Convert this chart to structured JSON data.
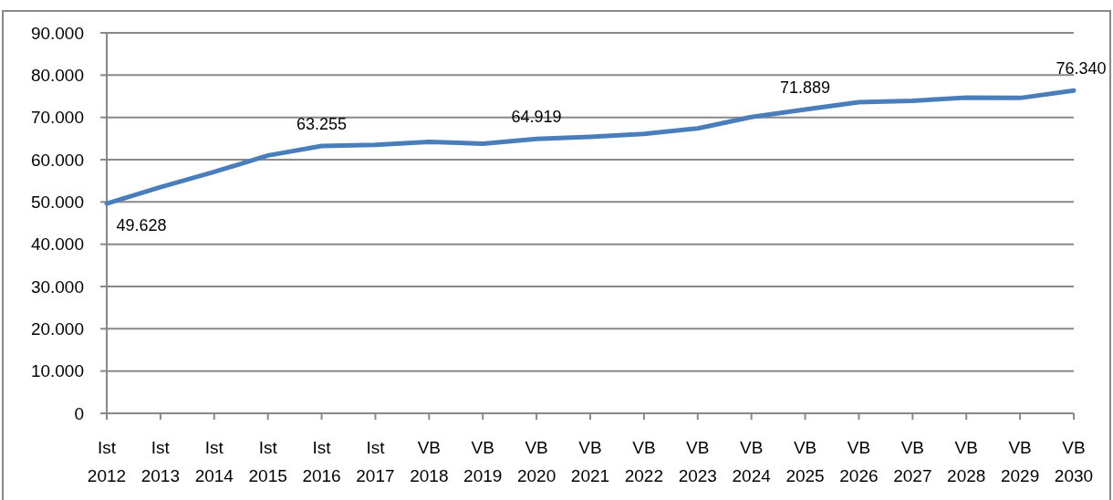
{
  "chart_data": {
    "type": "line",
    "categories": [
      "Ist 2012",
      "Ist 2013",
      "Ist 2014",
      "Ist 2015",
      "Ist 2016",
      "Ist 2017",
      "VB 2018",
      "VB 2019",
      "VB 2020",
      "VB 2021",
      "VB 2022",
      "VB 2023",
      "VB 2024",
      "VB 2025",
      "VB 2026",
      "VB 2027",
      "VB 2028",
      "VB 2029",
      "VB 2030"
    ],
    "values": [
      49628,
      53500,
      57100,
      61000,
      63255,
      63500,
      64200,
      63800,
      64919,
      65400,
      66100,
      67400,
      70100,
      71889,
      73600,
      73900,
      74700,
      74600,
      76340
    ],
    "value_labels": [
      "49.628",
      null,
      null,
      null,
      "63.255",
      null,
      null,
      null,
      "64.919",
      null,
      null,
      null,
      null,
      "71.889",
      null,
      null,
      null,
      null,
      "76.340"
    ],
    "color": "#4a7ebb",
    "ylim": [
      0,
      90000
    ],
    "yticks": [
      0,
      {
        "value": 10000,
        "label": "10.000"
      },
      {
        "value": 20000,
        "label": "20.000"
      },
      {
        "value": 30000,
        "label": "30.000"
      },
      {
        "value": 40000,
        "label": "40.000"
      },
      {
        "value": 50000,
        "label": "50.000"
      },
      {
        "value": 60000,
        "label": "60.000"
      },
      {
        "value": 70000,
        "label": "70.000"
      },
      {
        "value": 80000,
        "label": "80.000"
      },
      {
        "value": 90000,
        "label": "90.000"
      }
    ],
    "grid": "y"
  }
}
